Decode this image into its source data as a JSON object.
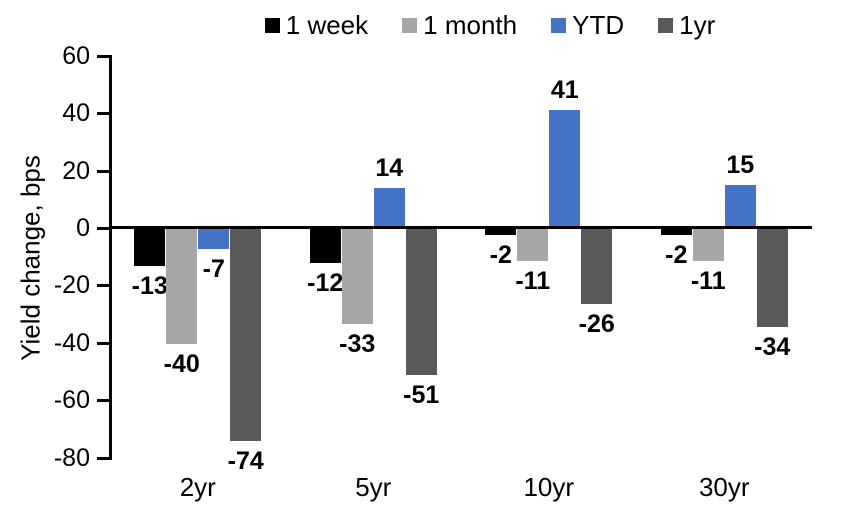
{
  "chart_data": {
    "type": "bar",
    "title": "",
    "ylabel": "Yield change, bps",
    "xlabel": "",
    "categories": [
      "2yr",
      "5yr",
      "10yr",
      "30yr"
    ],
    "series": [
      {
        "name": "1 week",
        "color": "#000000",
        "values": [
          -13,
          -12,
          -2,
          -2
        ]
      },
      {
        "name": "1 month",
        "color": "#a6a6a6",
        "values": [
          -40,
          -33,
          -11,
          -11
        ]
      },
      {
        "name": "YTD",
        "color": "#4472c4",
        "values": [
          -7,
          14,
          41,
          15
        ]
      },
      {
        "name": "1yr",
        "color": "#595959",
        "values": [
          -74,
          -51,
          -26,
          -34
        ]
      }
    ],
    "ylim": [
      -80,
      60
    ],
    "yticks": [
      60,
      40,
      20,
      0,
      -20,
      -40,
      -60,
      -80
    ],
    "axis_color": "#000000",
    "text_color": "#000000",
    "legend_position": "top",
    "grid": false,
    "data_labels": true
  }
}
